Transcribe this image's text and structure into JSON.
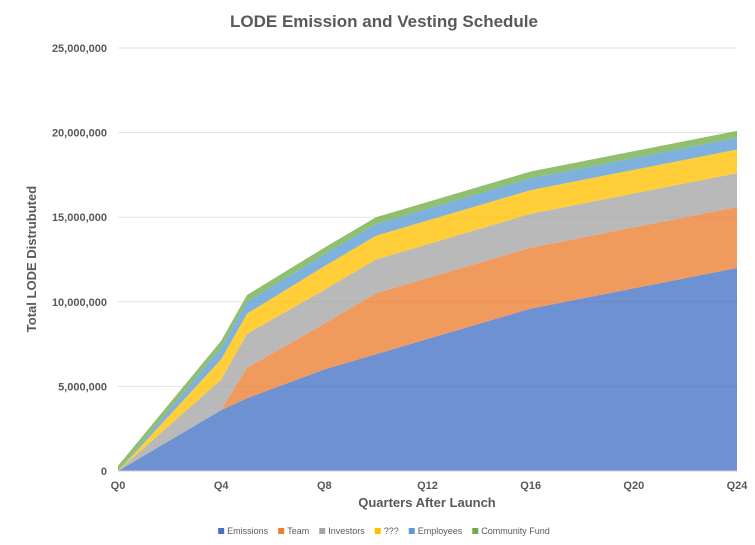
{
  "chart_data": {
    "type": "area",
    "stacked": true,
    "title": "LODE Emission and Vesting Schedule",
    "xlabel": "Quarters After Launch",
    "ylabel": "Total LODE Distrubuted",
    "x": [
      0,
      4,
      5,
      8,
      10,
      16,
      24
    ],
    "x_ticks": [
      {
        "value": 0,
        "label": "Q0"
      },
      {
        "value": 4,
        "label": "Q4"
      },
      {
        "value": 8,
        "label": "Q8"
      },
      {
        "value": 12,
        "label": "Q12"
      },
      {
        "value": 16,
        "label": "Q16"
      },
      {
        "value": 20,
        "label": "Q20"
      },
      {
        "value": 24,
        "label": "Q24"
      }
    ],
    "xlim": [
      0,
      24
    ],
    "ylim": [
      0,
      25000000
    ],
    "y_ticks": [
      {
        "value": 0,
        "label": "0"
      },
      {
        "value": 5000000,
        "label": "5,000,000"
      },
      {
        "value": 10000000,
        "label": "10,000,000"
      },
      {
        "value": 15000000,
        "label": "15,000,000"
      },
      {
        "value": 20000000,
        "label": "20,000,000"
      },
      {
        "value": 25000000,
        "label": "25,000,000"
      }
    ],
    "grid": true,
    "legend_position": "bottom",
    "series": [
      {
        "name": "Emissions",
        "color": "#4472C4",
        "values": [
          0,
          3600000,
          4300000,
          6000000,
          6900000,
          9600000,
          12000000
        ]
      },
      {
        "name": "Team",
        "color": "#ED7D31",
        "values": [
          0,
          0,
          1800000,
          2700000,
          3600000,
          3600000,
          3600000
        ]
      },
      {
        "name": "Investors",
        "color": "#A5A5A5",
        "values": [
          0,
          1800000,
          2000000,
          2000000,
          2000000,
          2000000,
          2000000
        ]
      },
      {
        "name": "???",
        "color": "#FFC000",
        "values": [
          0,
          1200000,
          1200000,
          1400000,
          1400000,
          1400000,
          1400000
        ]
      },
      {
        "name": "Employees",
        "color": "#5B9BD5",
        "values": [
          0,
          700000,
          700000,
          700000,
          700000,
          700000,
          700000
        ]
      },
      {
        "name": "Community Fund",
        "color": "#70AD47",
        "values": [
          300000,
          400000,
          400000,
          400000,
          400000,
          400000,
          400000
        ]
      }
    ]
  }
}
